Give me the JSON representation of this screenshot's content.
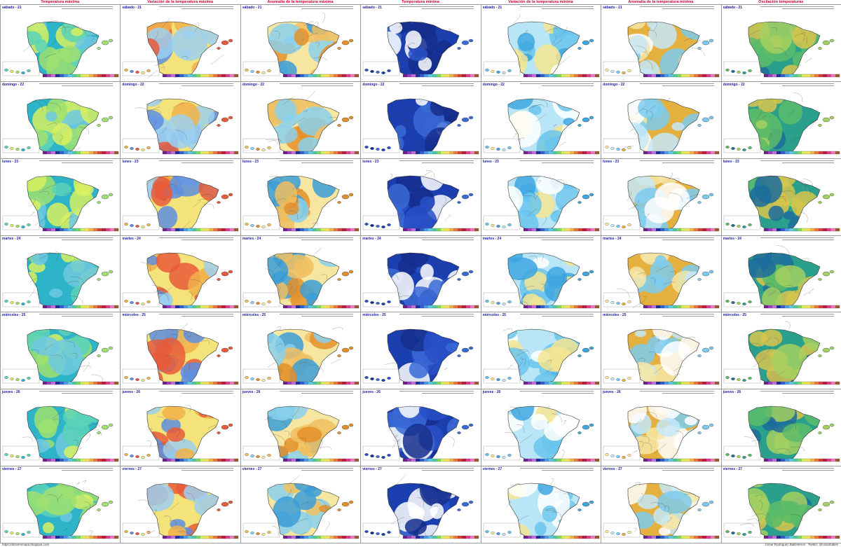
{
  "columns": [
    {
      "title": "Temperatura máxima",
      "scheme": "tmax"
    },
    {
      "title": "Variación de la temperatura máxima",
      "scheme": "var"
    },
    {
      "title": "Anomalía de la temperatura máxima",
      "scheme": "anom"
    },
    {
      "title": "Temperatura mínima",
      "scheme": "tmin"
    },
    {
      "title": "Variación de la temperatura mínima",
      "scheme": "var2"
    },
    {
      "title": "Anomalía de la temperatura mínima",
      "scheme": "anom2"
    },
    {
      "title": "Oscilación temperaturas",
      "scheme": "osc"
    }
  ],
  "rows": [
    {
      "label": "sábado - 21"
    },
    {
      "label": "domingo - 22"
    },
    {
      "label": "lunes - 23"
    },
    {
      "label": "martes - 24"
    },
    {
      "label": "miércoles - 25"
    },
    {
      "label": "jueves - 26"
    },
    {
      "label": "viernes - 27"
    }
  ],
  "palettes": {
    "tmax": [
      "#2db4c8",
      "#5cd2b8",
      "#9fe070",
      "#d8f060",
      "#6fc8e0"
    ],
    "var": [
      "#f4e27a",
      "#f2b24a",
      "#e85a3a",
      "#5e8fe0",
      "#9cd0f0"
    ],
    "anom": [
      "#f7e6a0",
      "#f0c060",
      "#e4902a",
      "#8ad0ec",
      "#3c9ed8"
    ],
    "tmin": [
      "#1c3fb0",
      "#2850c8",
      "#3a6ad6",
      "#152e8c",
      "#ffffff"
    ],
    "var2": [
      "#b8e6f6",
      "#6ac4ec",
      "#3ea6e0",
      "#f4e590",
      "#ffffff"
    ],
    "anom2": [
      "#e4b040",
      "#f6e6a4",
      "#7ccbee",
      "#c4e8f8",
      "#ffffff"
    ],
    "osc": [
      "#2aa08c",
      "#5cbc68",
      "#a4d060",
      "#1c6c9c",
      "#d8c44c"
    ]
  },
  "footer": {
    "left": "https://dinsemmapa.blogspot.com",
    "right": "César Rodríguez Ballesteros · Twitter: @cesarballes"
  }
}
